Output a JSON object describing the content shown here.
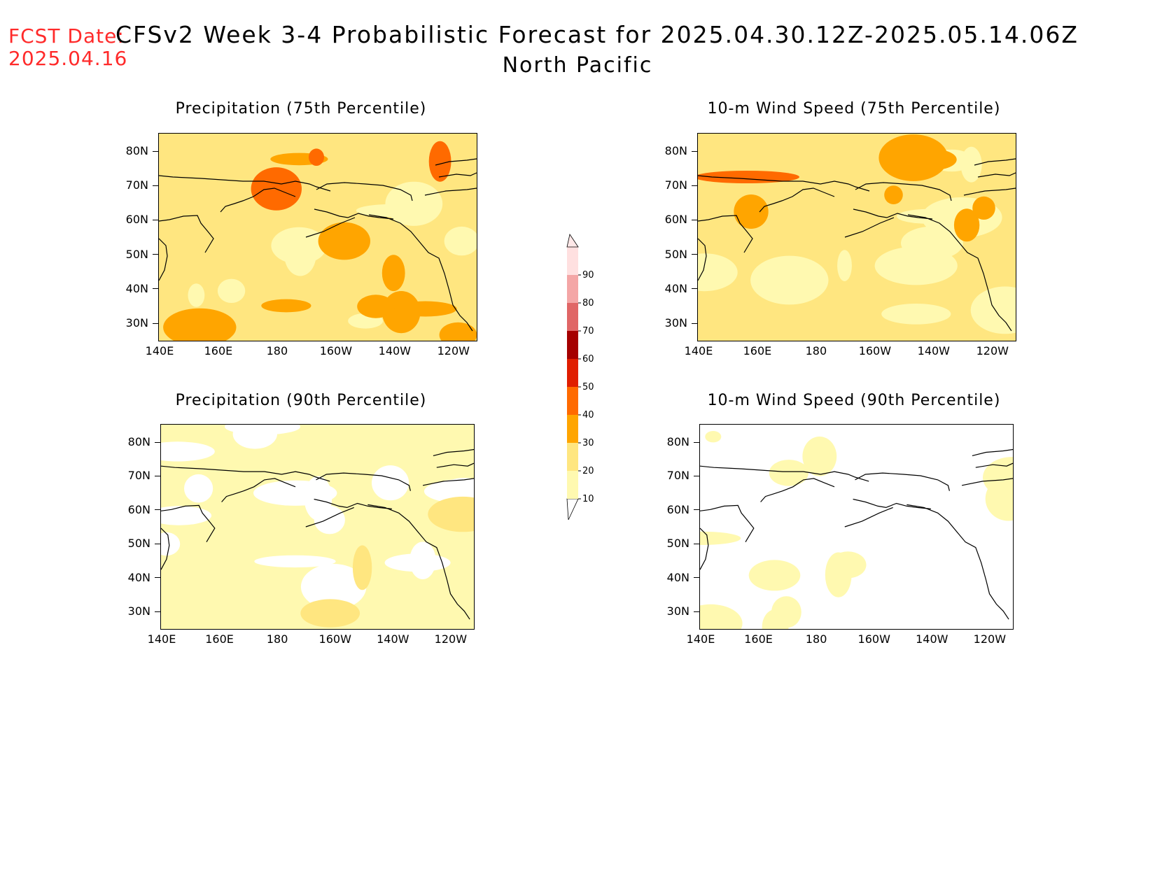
{
  "header": {
    "fcst_label": "FCST Date:",
    "fcst_date": "2025.04.16",
    "title": "CFSv2 Week 3-4 Probabilistic Forecast for 2025.04.30.12Z-2025.05.14.06Z",
    "subtitle": "North Pacific"
  },
  "axes": {
    "x_ticks": [
      "140E",
      "160E",
      "180",
      "160W",
      "140W",
      "120W"
    ],
    "y_ticks": [
      "80N",
      "70N",
      "60N",
      "50N",
      "40N",
      "30N"
    ]
  },
  "panels": [
    {
      "id": "precip-75",
      "title": "Precipitation (75th Percentile)",
      "base_level": 20
    },
    {
      "id": "wind-75",
      "title": "10-m Wind Speed (75th Percentile)",
      "base_level": 20
    },
    {
      "id": "precip-90",
      "title": "Precipitation (90th Percentile)",
      "base_level": 10
    },
    {
      "id": "wind-90",
      "title": "10-m Wind Speed (90th Percentile)",
      "base_level": 0
    }
  ],
  "colorbar": {
    "levels": [
      "10",
      "20",
      "30",
      "40",
      "50",
      "60",
      "70",
      "80",
      "90"
    ],
    "colors": [
      "#fff9b0",
      "#ffe680",
      "#ffa500",
      "#ff6a00",
      "#e01e00",
      "#a50000",
      "#e06666",
      "#f4a6a6",
      "#ffe0e0"
    ]
  }
}
